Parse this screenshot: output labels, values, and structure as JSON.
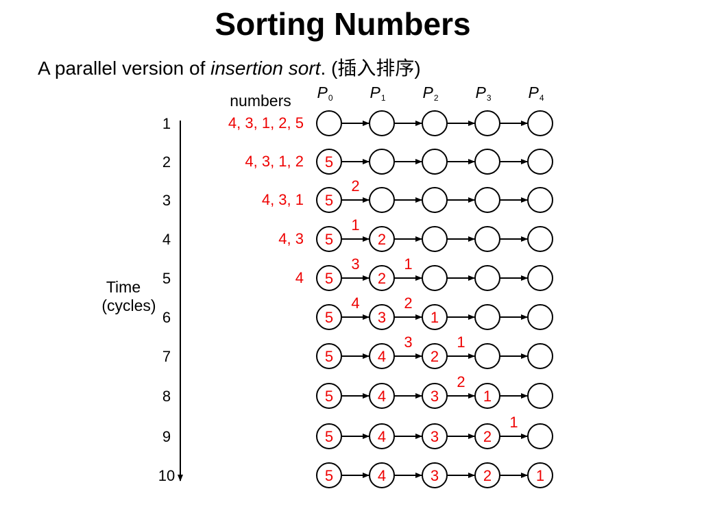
{
  "title": "Sorting Numbers",
  "subtitle": {
    "prefix": "A parallel version of ",
    "emphasis": "insertion sort",
    "suffix": ". (插入排序)"
  },
  "colors": {
    "accent": "#ee0000",
    "ink": "#000000"
  },
  "diagram": {
    "numbers_header": "numbers",
    "time_label_line1": "Time",
    "time_label_line2": "(cycles)",
    "processors": [
      {
        "name": "P",
        "sub": "0"
      },
      {
        "name": "P",
        "sub": "1"
      },
      {
        "name": "P",
        "sub": "2"
      },
      {
        "name": "P",
        "sub": "3"
      },
      {
        "name": "P",
        "sub": "4"
      }
    ],
    "cycles": [
      {
        "cycle": "1",
        "numbers": "4, 3, 1, 2, 5",
        "cells": [
          "",
          "",
          "",
          "",
          ""
        ],
        "in_transit": []
      },
      {
        "cycle": "2",
        "numbers": "4, 3, 1, 2",
        "cells": [
          "5",
          "",
          "",
          "",
          ""
        ],
        "in_transit": []
      },
      {
        "cycle": "3",
        "numbers": "4, 3, 1",
        "cells": [
          "5",
          "",
          "",
          "",
          ""
        ],
        "in_transit": [
          {
            "link": 0,
            "value": "2"
          }
        ]
      },
      {
        "cycle": "4",
        "numbers": "4, 3",
        "cells": [
          "5",
          "2",
          "",
          "",
          ""
        ],
        "in_transit": [
          {
            "link": 0,
            "value": "1"
          }
        ]
      },
      {
        "cycle": "5",
        "numbers": "4",
        "cells": [
          "5",
          "2",
          "",
          "",
          ""
        ],
        "in_transit": [
          {
            "link": 0,
            "value": "3"
          },
          {
            "link": 1,
            "value": "1"
          }
        ]
      },
      {
        "cycle": "6",
        "numbers": "",
        "cells": [
          "5",
          "3",
          "1",
          "",
          ""
        ],
        "in_transit": [
          {
            "link": 0,
            "value": "4"
          },
          {
            "link": 1,
            "value": "2"
          }
        ]
      },
      {
        "cycle": "7",
        "numbers": "",
        "cells": [
          "5",
          "4",
          "2",
          "",
          ""
        ],
        "in_transit": [
          {
            "link": 1,
            "value": "3"
          },
          {
            "link": 2,
            "value": "1"
          }
        ]
      },
      {
        "cycle": "8",
        "numbers": "",
        "cells": [
          "5",
          "4",
          "3",
          "1",
          ""
        ],
        "in_transit": [
          {
            "link": 2,
            "value": "2"
          }
        ]
      },
      {
        "cycle": "9",
        "numbers": "",
        "cells": [
          "5",
          "4",
          "3",
          "2",
          ""
        ],
        "in_transit": [
          {
            "link": 3,
            "value": "1"
          }
        ]
      },
      {
        "cycle": "10",
        "numbers": "",
        "cells": [
          "5",
          "4",
          "3",
          "2",
          "1"
        ],
        "in_transit": []
      }
    ]
  }
}
